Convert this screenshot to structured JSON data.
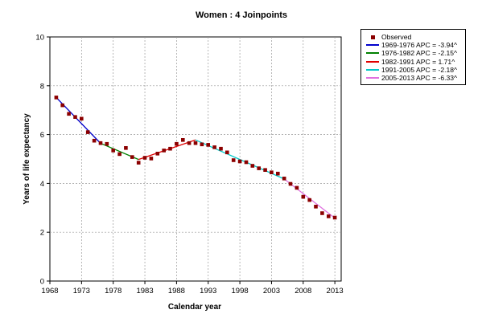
{
  "chart_data": {
    "type": "line",
    "title": "Women : 4 Joinpoints",
    "xlabel": "Calendar year",
    "ylabel": "Years of life expectancy",
    "xlim": [
      1968,
      2014
    ],
    "ylim": [
      0,
      10
    ],
    "xticks": [
      1968,
      1973,
      1978,
      1983,
      1988,
      1993,
      1998,
      2003,
      2008,
      2013
    ],
    "yticks": [
      0,
      2,
      4,
      6,
      8,
      10
    ],
    "grid": true,
    "legend_position": "right",
    "observed": {
      "name": "Observed",
      "color": "#8b0000",
      "x": [
        1969,
        1970,
        1971,
        1972,
        1973,
        1974,
        1975,
        1976,
        1977,
        1978,
        1979,
        1980,
        1981,
        1982,
        1983,
        1984,
        1985,
        1986,
        1987,
        1988,
        1989,
        1990,
        1991,
        1992,
        1993,
        1994,
        1995,
        1996,
        1997,
        1998,
        1999,
        2000,
        2001,
        2002,
        2003,
        2004,
        2005,
        2006,
        2007,
        2008,
        2009,
        2010,
        2011,
        2012,
        2013
      ],
      "y": [
        7.52,
        7.2,
        6.85,
        6.72,
        6.65,
        6.1,
        5.75,
        5.65,
        5.62,
        5.35,
        5.2,
        5.45,
        5.08,
        4.85,
        5.05,
        5.02,
        5.22,
        5.35,
        5.42,
        5.62,
        5.78,
        5.65,
        5.65,
        5.6,
        5.58,
        5.48,
        5.42,
        5.27,
        4.95,
        4.9,
        4.87,
        4.72,
        4.62,
        4.55,
        4.45,
        4.4,
        4.2,
        3.98,
        3.82,
        3.45,
        3.32,
        3.05,
        2.78,
        2.65,
        2.6
      ]
    },
    "series": [
      {
        "name": "1969-1976 APC  = -3.94^",
        "color": "#0000cc",
        "x": [
          1969,
          1976
        ],
        "y": [
          7.52,
          5.64
        ]
      },
      {
        "name": "1976-1982 APC  = -2.15^",
        "color": "#008000",
        "x": [
          1976,
          1982
        ],
        "y": [
          5.64,
          4.98
        ]
      },
      {
        "name": "1982-1991 APC  =  1.71^",
        "color": "#e00000",
        "x": [
          1982,
          1991
        ],
        "y": [
          4.98,
          5.78
        ]
      },
      {
        "name": "1991-2005 APC  = -2.18^",
        "color": "#00c8c8",
        "x": [
          1991,
          2005
        ],
        "y": [
          5.78,
          4.18
        ]
      },
      {
        "name": "2005-2013 APC  = -6.33^",
        "color": "#e070e0",
        "x": [
          2005,
          2013
        ],
        "y": [
          4.18,
          2.58
        ]
      }
    ]
  }
}
